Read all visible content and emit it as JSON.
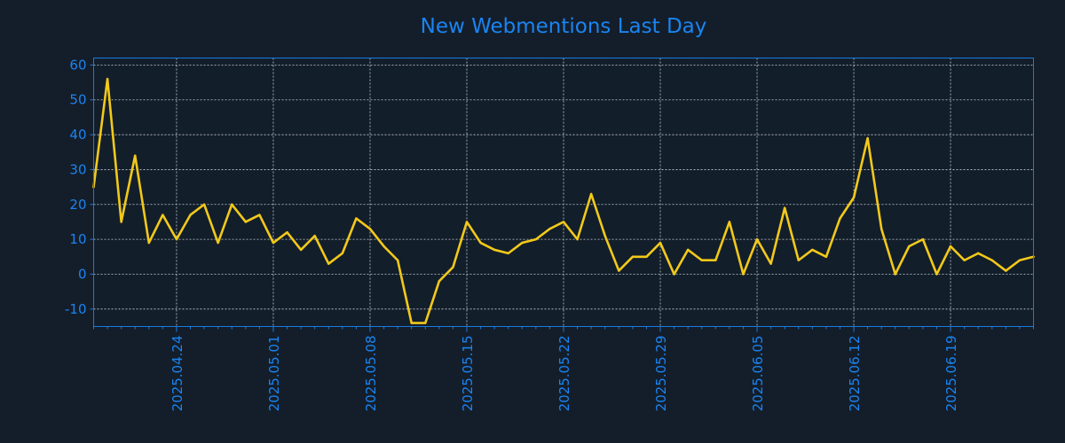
{
  "colors": {
    "background": "#141e2a",
    "plot_background": "#131e2b",
    "axis": "#1a7ae0",
    "text": "#1a84f2",
    "grid": "#c8ccd2",
    "line": "#f2c91a"
  },
  "chart_data": {
    "type": "line",
    "title": "New Webmentions Last Day",
    "xlabel": "",
    "ylabel": "",
    "x_start": "2025-04-18",
    "x_end": "2025-06-25",
    "ylim": [
      -15,
      62
    ],
    "yticks": [
      -10,
      0,
      10,
      20,
      30,
      40,
      50,
      60
    ],
    "xticks": [
      "2025.04.24",
      "2025.05.01",
      "2025.05.08",
      "2025.05.15",
      "2025.05.22",
      "2025.05.29",
      "2025.06.05",
      "2025.06.12",
      "2025.06.19"
    ],
    "grid": true,
    "legend": "none",
    "series": [
      {
        "x": [
          "2025-04-18",
          "2025-04-19",
          "2025-04-20",
          "2025-04-21",
          "2025-04-22",
          "2025-04-23",
          "2025-04-24",
          "2025-04-25",
          "2025-04-26",
          "2025-04-27",
          "2025-04-28",
          "2025-04-29",
          "2025-04-30",
          "2025-05-01",
          "2025-05-02",
          "2025-05-03",
          "2025-05-04",
          "2025-05-05",
          "2025-05-06",
          "2025-05-07",
          "2025-05-08",
          "2025-05-09",
          "2025-05-10",
          "2025-05-11",
          "2025-05-12",
          "2025-05-13",
          "2025-05-14",
          "2025-05-15",
          "2025-05-16",
          "2025-05-17",
          "2025-05-18",
          "2025-05-19",
          "2025-05-20",
          "2025-05-21",
          "2025-05-22",
          "2025-05-23",
          "2025-05-24",
          "2025-05-25",
          "2025-05-26",
          "2025-05-27",
          "2025-05-28",
          "2025-05-29",
          "2025-05-30",
          "2025-05-31",
          "2025-06-01",
          "2025-06-02",
          "2025-06-03",
          "2025-06-04",
          "2025-06-05",
          "2025-06-06",
          "2025-06-07",
          "2025-06-08",
          "2025-06-09",
          "2025-06-10",
          "2025-06-11",
          "2025-06-12",
          "2025-06-13",
          "2025-06-14",
          "2025-06-15",
          "2025-06-16",
          "2025-06-17",
          "2025-06-18",
          "2025-06-19",
          "2025-06-20",
          "2025-06-21",
          "2025-06-22",
          "2025-06-23",
          "2025-06-24",
          "2025-06-25"
        ],
        "values": [
          25,
          56,
          15,
          34,
          9,
          17,
          10,
          17,
          20,
          9,
          20,
          15,
          17,
          9,
          12,
          7,
          11,
          3,
          6,
          16,
          13,
          8,
          4,
          -14,
          -14,
          -2,
          2,
          15,
          9,
          7,
          6,
          9,
          10,
          13,
          15,
          10,
          23,
          11,
          1,
          5,
          5,
          9,
          0,
          7,
          4,
          4,
          15,
          0,
          10,
          3,
          19,
          4,
          7,
          5,
          16,
          22,
          39,
          13,
          0,
          8,
          10,
          0,
          8,
          4,
          6,
          4,
          1,
          4,
          5
        ]
      }
    ]
  }
}
